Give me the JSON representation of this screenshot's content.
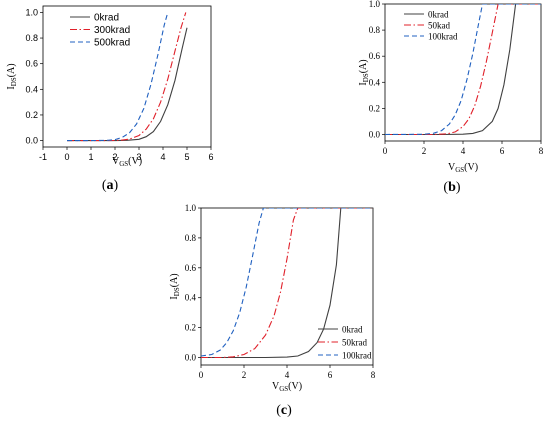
{
  "chart_data": [
    {
      "id": "a",
      "type": "line",
      "panel_label": "a",
      "xlabel": "V",
      "xlabel_sub": "GS",
      "xlabel_unit": "(V)",
      "ylabel": "I",
      "ylabel_sub": "DS",
      "ylabel_unit": "(A)",
      "xlim": [
        -1,
        6
      ],
      "ylim": [
        -0.05,
        1.05
      ],
      "xticks": [
        "-1",
        "0",
        "1",
        "2",
        "3",
        "4",
        "5",
        "6"
      ],
      "yticks": [
        "0.0",
        "0.2",
        "0.4",
        "0.6",
        "0.8",
        "1.0"
      ],
      "legend_position": "top-left",
      "series": [
        {
          "name": "0krad",
          "color": "#404040",
          "dash": "solid",
          "x": [
            0,
            1,
            2,
            2.5,
            3,
            3.3,
            3.6,
            3.9,
            4.2,
            4.5,
            4.8,
            5.0
          ],
          "y": [
            0,
            0,
            0,
            0.002,
            0.01,
            0.03,
            0.07,
            0.15,
            0.28,
            0.47,
            0.72,
            0.88
          ]
        },
        {
          "name": "300krad",
          "color": "#e0202a",
          "dash": "dashdot",
          "x": [
            0,
            1,
            2,
            2.3,
            2.6,
            3.0,
            3.3,
            3.6,
            3.9,
            4.2,
            4.5,
            4.75,
            4.95
          ],
          "y": [
            0,
            0,
            0.001,
            0.004,
            0.012,
            0.04,
            0.09,
            0.17,
            0.3,
            0.48,
            0.7,
            0.88,
            1.0
          ]
        },
        {
          "name": "500krad",
          "color": "#2060c0",
          "dash": "dashed",
          "x": [
            0,
            1,
            1.7,
            2.0,
            2.3,
            2.6,
            2.9,
            3.2,
            3.5,
            3.8,
            4.05,
            4.2
          ],
          "y": [
            0,
            0,
            0.002,
            0.008,
            0.025,
            0.06,
            0.13,
            0.25,
            0.44,
            0.68,
            0.9,
            1.0
          ]
        }
      ]
    },
    {
      "id": "b",
      "type": "line",
      "panel_label": "b",
      "xlabel": "V",
      "xlabel_sub": "GS",
      "xlabel_unit": "(V)",
      "ylabel": "I",
      "ylabel_sub": "DS",
      "ylabel_unit": "(A)",
      "xlim": [
        0,
        8
      ],
      "ylim": [
        -0.05,
        1.0
      ],
      "xticks": [
        "0",
        "2",
        "4",
        "6",
        "8"
      ],
      "yticks": [
        "0.0",
        "0.2",
        "0.4",
        "0.6",
        "0.8",
        "1.0"
      ],
      "legend_position": "top-left",
      "series": [
        {
          "name": "0krad",
          "color": "#404040",
          "dash": "solid",
          "x": [
            0,
            3,
            4,
            4.5,
            5,
            5.5,
            5.8,
            6.1,
            6.4,
            6.7,
            8
          ],
          "y": [
            0,
            0,
            0.002,
            0.008,
            0.03,
            0.1,
            0.2,
            0.38,
            0.65,
            1.0,
            1.0
          ]
        },
        {
          "name": "50kad",
          "color": "#e0202a",
          "dash": "dashdot",
          "x": [
            0,
            2.5,
            3.2,
            3.6,
            4.0,
            4.3,
            4.6,
            4.9,
            5.2,
            5.5,
            5.8,
            8
          ],
          "y": [
            0,
            0,
            0.005,
            0.02,
            0.06,
            0.12,
            0.22,
            0.37,
            0.56,
            0.78,
            1.0,
            1.0
          ]
        },
        {
          "name": "100krad",
          "color": "#2060c0",
          "dash": "dashed",
          "x": [
            0,
            2.0,
            2.5,
            2.9,
            3.3,
            3.6,
            3.9,
            4.2,
            4.5,
            4.8,
            5.0,
            8
          ],
          "y": [
            0,
            0.001,
            0.01,
            0.03,
            0.08,
            0.15,
            0.26,
            0.42,
            0.62,
            0.85,
            1.0,
            1.0
          ]
        }
      ]
    },
    {
      "id": "c",
      "type": "line",
      "panel_label": "c",
      "xlabel": "V",
      "xlabel_sub": "GS",
      "xlabel_unit": "(V)",
      "ylabel": "I",
      "ylabel_sub": "DS",
      "ylabel_unit": "(A)",
      "xlim": [
        0,
        8
      ],
      "ylim": [
        -0.05,
        1.0
      ],
      "xticks": [
        "0",
        "2",
        "4",
        "6",
        "8"
      ],
      "yticks": [
        "0.0",
        "0.2",
        "0.4",
        "0.6",
        "0.8",
        "1.0"
      ],
      "legend_position": "bottom-right",
      "series": [
        {
          "name": "0krad",
          "color": "#404040",
          "dash": "solid",
          "x": [
            0,
            3,
            4,
            4.5,
            5,
            5.4,
            5.7,
            6.0,
            6.3,
            6.5,
            8
          ],
          "y": [
            0,
            0,
            0.003,
            0.01,
            0.04,
            0.1,
            0.19,
            0.35,
            0.62,
            1.0,
            1.0
          ]
        },
        {
          "name": "50krad",
          "color": "#e0202a",
          "dash": "dashdot",
          "x": [
            0,
            1.0,
            1.5,
            2.0,
            2.5,
            3.0,
            3.4,
            3.7,
            4.0,
            4.3,
            4.5,
            8
          ],
          "y": [
            0,
            0,
            0.005,
            0.02,
            0.06,
            0.15,
            0.28,
            0.44,
            0.66,
            0.92,
            1.0,
            1.0
          ]
        },
        {
          "name": "100krad",
          "color": "#2060c0",
          "dash": "dashed",
          "x": [
            0,
            0.5,
            0.9,
            1.2,
            1.5,
            1.8,
            2.1,
            2.4,
            2.7,
            2.9,
            8
          ],
          "y": [
            0.01,
            0.02,
            0.05,
            0.1,
            0.18,
            0.3,
            0.47,
            0.68,
            0.9,
            1.0,
            1.0
          ]
        }
      ]
    }
  ]
}
